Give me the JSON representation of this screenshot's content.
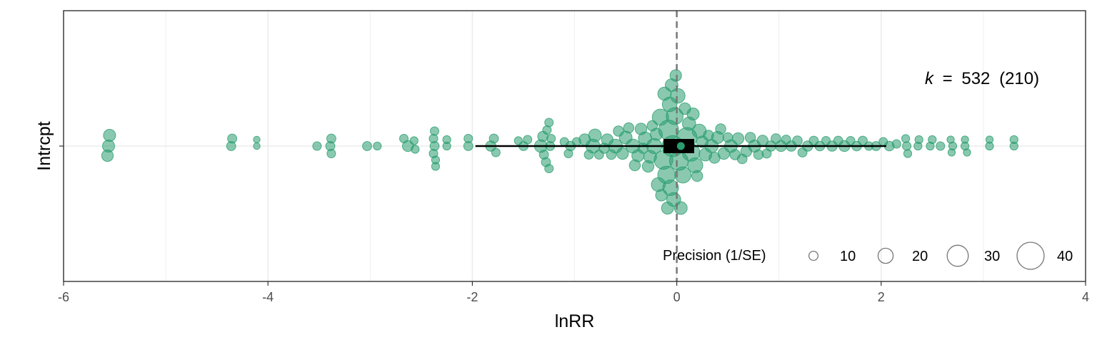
{
  "chart_data": {
    "type": "scatter",
    "subtype": "orchard plot",
    "xlabel": "lnRR",
    "ylabel": "Intrcpt",
    "xlim": [
      -6,
      4
    ],
    "x_ticks": [
      "-6",
      "-4",
      "-2",
      "0",
      "2",
      "4"
    ],
    "y_categories": [
      "Intrcpt"
    ],
    "grid": true,
    "reference_line": {
      "x": 0,
      "style": "dashed"
    },
    "point_color": "#2a9d6f",
    "estimate": {
      "category": "Intrcpt",
      "mean": 0.04,
      "confidence_interval": [
        -0.13,
        0.17
      ],
      "prediction_interval": [
        -1.97,
        2.05
      ]
    },
    "annotation": {
      "k_label": "k",
      "equals": "=",
      "k_value": "532",
      "k_groups": "(210)",
      "k": 532,
      "groups": 210
    },
    "legend": {
      "title": "Precision (1/SE)",
      "placement": "bottom-right",
      "sizes": [
        "10",
        "20",
        "30",
        "40"
      ]
    },
    "points": [
      {
        "x": -5.56,
        "precision": 15
      },
      {
        "x": -5.55,
        "precision": 15
      },
      {
        "x": -5.57,
        "precision": 14
      },
      {
        "x": -4.36,
        "precision": 10
      },
      {
        "x": -4.35,
        "precision": 10
      },
      {
        "x": -4.11,
        "precision": 6
      },
      {
        "x": -4.11,
        "precision": 6
      },
      {
        "x": -3.52,
        "precision": 9
      },
      {
        "x": -3.39,
        "precision": 10
      },
      {
        "x": -3.38,
        "precision": 10
      },
      {
        "x": -3.38,
        "precision": 9
      },
      {
        "x": -3.03,
        "precision": 10
      },
      {
        "x": -2.93,
        "precision": 8
      },
      {
        "x": -2.67,
        "precision": 9
      },
      {
        "x": -2.63,
        "precision": 13
      },
      {
        "x": -2.57,
        "precision": 8
      },
      {
        "x": -2.56,
        "precision": 8
      },
      {
        "x": -2.38,
        "precision": 9
      },
      {
        "x": -2.38,
        "precision": 9
      },
      {
        "x": -2.37,
        "precision": 10
      },
      {
        "x": -2.37,
        "precision": 9
      },
      {
        "x": -2.36,
        "precision": 8
      },
      {
        "x": -2.36,
        "precision": 8
      },
      {
        "x": -2.25,
        "precision": 8
      },
      {
        "x": -2.25,
        "precision": 8
      },
      {
        "x": -2.04,
        "precision": 10
      },
      {
        "x": -2.04,
        "precision": 9
      },
      {
        "x": -1.82,
        "precision": 12
      },
      {
        "x": -1.79,
        "precision": 10
      },
      {
        "x": -1.77,
        "precision": 9
      },
      {
        "x": -1.55,
        "precision": 8
      },
      {
        "x": -1.5,
        "precision": 10
      },
      {
        "x": -1.46,
        "precision": 9
      },
      {
        "x": -1.33,
        "precision": 16
      },
      {
        "x": -1.31,
        "precision": 12
      },
      {
        "x": -1.3,
        "precision": 10
      },
      {
        "x": -1.28,
        "precision": 10
      },
      {
        "x": -1.27,
        "precision": 9
      },
      {
        "x": -1.25,
        "precision": 9
      },
      {
        "x": -1.25,
        "precision": 9
      },
      {
        "x": -1.24,
        "precision": 10
      },
      {
        "x": -1.23,
        "precision": 9
      },
      {
        "x": -1.1,
        "precision": 9
      },
      {
        "x": -1.06,
        "precision": 9
      },
      {
        "x": -1.04,
        "precision": 11
      },
      {
        "x": -0.98,
        "precision": 9
      },
      {
        "x": -0.9,
        "precision": 14
      },
      {
        "x": -0.86,
        "precision": 10
      },
      {
        "x": -0.82,
        "precision": 18
      },
      {
        "x": -0.8,
        "precision": 16
      },
      {
        "x": -0.76,
        "precision": 10
      },
      {
        "x": -0.71,
        "precision": 12
      },
      {
        "x": -0.68,
        "precision": 14
      },
      {
        "x": -0.64,
        "precision": 11
      },
      {
        "x": -0.6,
        "precision": 18
      },
      {
        "x": -0.57,
        "precision": 12
      },
      {
        "x": -0.53,
        "precision": 14
      },
      {
        "x": -0.5,
        "precision": 16
      },
      {
        "x": -0.47,
        "precision": 12
      },
      {
        "x": -0.43,
        "precision": 18
      },
      {
        "x": -0.41,
        "precision": 13
      },
      {
        "x": -0.38,
        "precision": 15
      },
      {
        "x": -0.35,
        "precision": 14
      },
      {
        "x": -0.33,
        "precision": 12
      },
      {
        "x": -0.31,
        "precision": 17
      },
      {
        "x": -0.28,
        "precision": 14
      },
      {
        "x": -0.26,
        "precision": 16
      },
      {
        "x": -0.24,
        "precision": 12
      },
      {
        "x": -0.22,
        "precision": 20
      },
      {
        "x": -0.2,
        "precision": 15
      },
      {
        "x": -0.18,
        "precision": 18
      },
      {
        "x": -0.16,
        "precision": 22
      },
      {
        "x": -0.15,
        "precision": 14
      },
      {
        "x": -0.13,
        "precision": 26
      },
      {
        "x": -0.12,
        "precision": 17
      },
      {
        "x": -0.1,
        "precision": 24
      },
      {
        "x": -0.09,
        "precision": 15
      },
      {
        "x": -0.08,
        "precision": 28
      },
      {
        "x": -0.07,
        "precision": 19
      },
      {
        "x": -0.06,
        "precision": 21
      },
      {
        "x": -0.05,
        "precision": 16
      },
      {
        "x": -0.04,
        "precision": 30
      },
      {
        "x": -0.03,
        "precision": 18
      },
      {
        "x": -0.02,
        "precision": 23
      },
      {
        "x": -0.01,
        "precision": 14
      },
      {
        "x": 0.01,
        "precision": 19
      },
      {
        "x": 0.02,
        "precision": 26
      },
      {
        "x": 0.04,
        "precision": 16
      },
      {
        "x": 0.06,
        "precision": 22
      },
      {
        "x": 0.08,
        "precision": 14
      },
      {
        "x": 0.1,
        "precision": 28
      },
      {
        "x": 0.12,
        "precision": 17
      },
      {
        "x": 0.14,
        "precision": 24
      },
      {
        "x": 0.16,
        "precision": 15
      },
      {
        "x": 0.18,
        "precision": 20
      },
      {
        "x": 0.2,
        "precision": 13
      },
      {
        "x": 0.22,
        "precision": 18
      },
      {
        "x": 0.25,
        "precision": 14
      },
      {
        "x": 0.28,
        "precision": 16
      },
      {
        "x": 0.31,
        "precision": 12
      },
      {
        "x": 0.34,
        "precision": 17
      },
      {
        "x": 0.37,
        "precision": 13
      },
      {
        "x": 0.4,
        "precision": 15
      },
      {
        "x": 0.43,
        "precision": 12
      },
      {
        "x": 0.46,
        "precision": 14
      },
      {
        "x": 0.5,
        "precision": 11
      },
      {
        "x": 0.53,
        "precision": 16
      },
      {
        "x": 0.57,
        "precision": 12
      },
      {
        "x": 0.6,
        "precision": 14
      },
      {
        "x": 0.64,
        "precision": 11
      },
      {
        "x": 0.68,
        "precision": 13
      },
      {
        "x": 0.72,
        "precision": 12
      },
      {
        "x": 0.76,
        "precision": 15
      },
      {
        "x": 0.8,
        "precision": 11
      },
      {
        "x": 0.84,
        "precision": 13
      },
      {
        "x": 0.88,
        "precision": 10
      },
      {
        "x": 0.92,
        "precision": 12
      },
      {
        "x": 0.97,
        "precision": 11
      },
      {
        "x": 1.02,
        "precision": 13
      },
      {
        "x": 1.07,
        "precision": 10
      },
      {
        "x": 1.12,
        "precision": 12
      },
      {
        "x": 1.18,
        "precision": 11
      },
      {
        "x": 1.23,
        "precision": 10
      },
      {
        "x": 1.28,
        "precision": 12
      },
      {
        "x": 1.34,
        "precision": 10
      },
      {
        "x": 1.4,
        "precision": 11
      },
      {
        "x": 1.46,
        "precision": 9
      },
      {
        "x": 1.52,
        "precision": 12
      },
      {
        "x": 1.58,
        "precision": 10
      },
      {
        "x": 1.64,
        "precision": 13
      },
      {
        "x": 1.7,
        "precision": 9
      },
      {
        "x": 1.76,
        "precision": 11
      },
      {
        "x": 1.82,
        "precision": 10
      },
      {
        "x": 1.88,
        "precision": 9
      },
      {
        "x": 1.95,
        "precision": 10
      },
      {
        "x": 2.02,
        "precision": 9
      },
      {
        "x": 2.08,
        "precision": 11
      },
      {
        "x": 2.15,
        "precision": 9
      },
      {
        "x": 2.24,
        "precision": 8
      },
      {
        "x": 2.25,
        "precision": 9
      },
      {
        "x": 2.26,
        "precision": 8
      },
      {
        "x": 2.36,
        "precision": 8
      },
      {
        "x": 2.37,
        "precision": 8
      },
      {
        "x": 2.48,
        "precision": 8
      },
      {
        "x": 2.5,
        "precision": 8
      },
      {
        "x": 2.58,
        "precision": 9
      },
      {
        "x": 2.68,
        "precision": 7
      },
      {
        "x": 2.69,
        "precision": 7
      },
      {
        "x": 2.7,
        "precision": 8
      },
      {
        "x": 2.82,
        "precision": 8
      },
      {
        "x": 2.82,
        "precision": 7
      },
      {
        "x": 2.84,
        "precision": 7
      },
      {
        "x": 3.06,
        "precision": 7
      },
      {
        "x": 3.06,
        "precision": 8
      },
      {
        "x": 3.3,
        "precision": 8
      },
      {
        "x": 3.3,
        "precision": 8
      }
    ]
  }
}
